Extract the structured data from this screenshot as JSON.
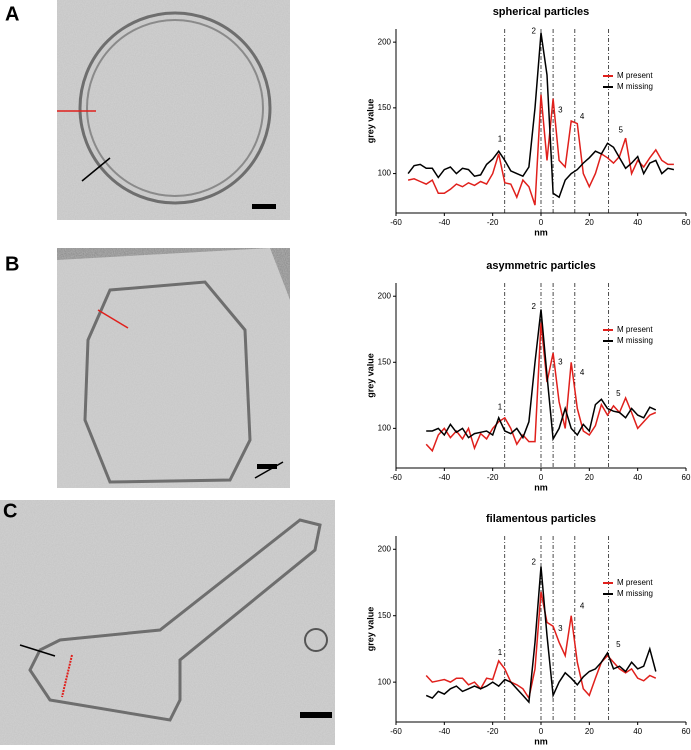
{
  "chart_data": [
    {
      "type": "line",
      "panel_label": "A",
      "title": "spherical particles",
      "xlabel": "nm",
      "ylabel": "grey value",
      "x": [
        -55,
        -52.5,
        -50,
        -47.5,
        -45,
        -42.5,
        -40,
        -37.5,
        -35,
        -32.5,
        -30,
        -27.5,
        -25,
        -22.5,
        -20,
        -17.5,
        -15,
        -12.5,
        -10,
        -7.5,
        -5,
        -2.5,
        0,
        2.5,
        5,
        7.5,
        10,
        12.5,
        15,
        17.5,
        20,
        22.5,
        25,
        27.5,
        30,
        32.5,
        35,
        37.5,
        40,
        42.5,
        45,
        47.5,
        50,
        52.5,
        55
      ],
      "series": [
        {
          "name": "M present",
          "color": "#e0201c",
          "values": [
            95,
            96,
            94,
            92,
            95,
            85,
            85,
            88,
            92,
            90,
            93,
            91,
            94,
            92,
            100,
            115,
            93,
            92,
            82,
            95,
            90,
            76,
            160,
            110,
            157,
            110,
            105,
            140,
            138,
            100,
            90,
            100,
            115,
            112,
            108,
            113,
            127,
            100,
            110,
            105,
            112,
            118,
            110,
            107,
            107
          ]
        },
        {
          "name": "M missing",
          "color": "#000000",
          "values": [
            100,
            106,
            107,
            104,
            104,
            97,
            103,
            105,
            100,
            104,
            103,
            98,
            99,
            107,
            111,
            117,
            110,
            102,
            100,
            98,
            105,
            150,
            207,
            175,
            85,
            82,
            95,
            100,
            103,
            108,
            112,
            117,
            115,
            123,
            120,
            112,
            104,
            108,
            113,
            100,
            108,
            110,
            100,
            104,
            103
          ]
        }
      ],
      "vlines": [
        -15,
        0,
        5,
        14,
        28
      ],
      "annotations": [
        {
          "text": "1",
          "x": -17,
          "y": 126
        },
        {
          "text": "2",
          "x": -3,
          "y": 208
        },
        {
          "text": "3",
          "x": 8,
          "y": 148
        },
        {
          "text": "4",
          "x": 17,
          "y": 143
        },
        {
          "text": "5",
          "x": 33,
          "y": 133
        }
      ],
      "xlim": [
        -60,
        60
      ],
      "xticks": [
        -60,
        -40,
        -20,
        0,
        20,
        40,
        60
      ],
      "ylim": [
        70,
        210
      ],
      "yticks": [
        100,
        150,
        200
      ]
    },
    {
      "type": "line",
      "panel_label": "B",
      "title": "asymmetric particles",
      "xlabel": "nm",
      "ylabel": "grey value",
      "x": [
        -47.5,
        -45,
        -42.5,
        -40,
        -37.5,
        -35,
        -32.5,
        -30,
        -27.5,
        -25,
        -22.5,
        -20,
        -17.5,
        -15,
        -12.5,
        -10,
        -7.5,
        -5,
        -2.5,
        0,
        2.5,
        5,
        7.5,
        10,
        12.5,
        15,
        17.5,
        20,
        22.5,
        25,
        27.5,
        30,
        32.5,
        35,
        37.5,
        40,
        42.5,
        45,
        47.5
      ],
      "series": [
        {
          "name": "M present",
          "color": "#e0201c",
          "values": [
            88,
            83,
            95,
            100,
            93,
            98,
            92,
            100,
            85,
            96,
            92,
            100,
            105,
            108,
            100,
            88,
            95,
            90,
            90,
            180,
            135,
            157,
            120,
            100,
            150,
            115,
            98,
            95,
            102,
            118,
            110,
            117,
            112,
            123,
            112,
            100,
            105,
            110,
            112
          ]
        },
        {
          "name": "M missing",
          "color": "#000000",
          "values": [
            98,
            98,
            100,
            95,
            103,
            97,
            100,
            93,
            96,
            97,
            98,
            95,
            108,
            98,
            96,
            100,
            93,
            105,
            150,
            190,
            140,
            92,
            100,
            115,
            100,
            95,
            103,
            98,
            118,
            122,
            115,
            113,
            112,
            108,
            115,
            110,
            108,
            116,
            114
          ]
        }
      ],
      "vlines": [
        -15,
        0,
        5,
        14,
        28
      ],
      "annotations": [
        {
          "text": "1",
          "x": -17,
          "y": 116
        },
        {
          "text": "2",
          "x": -3,
          "y": 192
        },
        {
          "text": "3",
          "x": 8,
          "y": 150
        },
        {
          "text": "4",
          "x": 17,
          "y": 142
        },
        {
          "text": "5",
          "x": 32,
          "y": 126
        }
      ],
      "xlim": [
        -60,
        60
      ],
      "xticks": [
        -60,
        -40,
        -20,
        0,
        20,
        40,
        60
      ],
      "ylim": [
        70,
        210
      ],
      "yticks": [
        100,
        150,
        200
      ]
    },
    {
      "type": "line",
      "panel_label": "C",
      "title": "filamentous particles",
      "xlabel": "nm",
      "ylabel": "grey value",
      "x": [
        -47.5,
        -45,
        -42.5,
        -40,
        -37.5,
        -35,
        -32.5,
        -30,
        -27.5,
        -25,
        -22.5,
        -20,
        -17.5,
        -15,
        -12.5,
        -10,
        -7.5,
        -5,
        -2.5,
        0,
        2.5,
        5,
        7.5,
        10,
        12.5,
        15,
        17.5,
        20,
        22.5,
        25,
        27.5,
        30,
        32.5,
        35,
        37.5,
        40,
        42.5,
        45,
        47.5
      ],
      "series": [
        {
          "name": "M present",
          "color": "#e0201c",
          "values": [
            105,
            100,
            101,
            102,
            100,
            103,
            103,
            98,
            100,
            95,
            103,
            102,
            116,
            110,
            100,
            98,
            95,
            88,
            110,
            168,
            145,
            142,
            130,
            120,
            150,
            115,
            95,
            90,
            103,
            115,
            120,
            115,
            110,
            107,
            110,
            103,
            101,
            105,
            103
          ]
        },
        {
          "name": "M missing",
          "color": "#000000",
          "values": [
            90,
            88,
            93,
            91,
            95,
            97,
            93,
            95,
            97,
            95,
            97,
            100,
            97,
            102,
            100,
            95,
            90,
            85,
            130,
            187,
            135,
            90,
            100,
            107,
            103,
            98,
            104,
            108,
            110,
            115,
            122,
            110,
            112,
            108,
            115,
            110,
            112,
            125,
            108
          ]
        }
      ],
      "vlines": [
        -15,
        0,
        5,
        14,
        28
      ],
      "annotations": [
        {
          "text": "1",
          "x": -17,
          "y": 122
        },
        {
          "text": "2",
          "x": -3,
          "y": 190
        },
        {
          "text": "3",
          "x": 8,
          "y": 140
        },
        {
          "text": "4",
          "x": 17,
          "y": 157
        },
        {
          "text": "5",
          "x": 32,
          "y": 128
        }
      ],
      "xlim": [
        -60,
        60
      ],
      "xticks": [
        -60,
        -40,
        -20,
        0,
        20,
        40,
        60
      ],
      "ylim": [
        70,
        210
      ],
      "yticks": [
        100,
        150,
        200
      ]
    }
  ]
}
